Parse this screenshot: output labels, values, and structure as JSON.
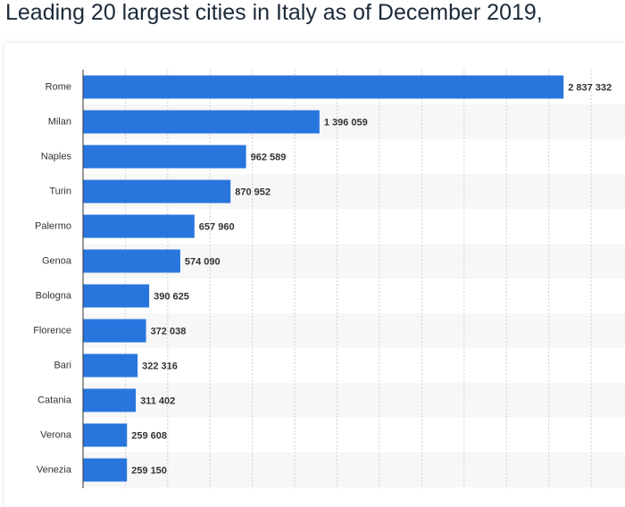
{
  "chart_data": {
    "type": "bar",
    "orientation": "horizontal",
    "title": "Leading 20 largest cities in Italy as of December 2019,",
    "categories": [
      "Rome",
      "Milan",
      "Naples",
      "Turin",
      "Palermo",
      "Genoa",
      "Bologna",
      "Florence",
      "Bari",
      "Catania",
      "Verona",
      "Venezia"
    ],
    "values": [
      2837332,
      1396059,
      962589,
      870952,
      657960,
      574090,
      390625,
      372038,
      322316,
      311402,
      259608,
      259150
    ],
    "value_labels": [
      "2 837 332",
      "1 396 059",
      "962 589",
      "870 952",
      "657 960",
      "574 090",
      "390 625",
      "372 038",
      "322 316",
      "311 402",
      "259 608",
      "259 150"
    ],
    "color": "#2876dd",
    "xlim": [
      0,
      3200000
    ],
    "xticks": [
      0,
      250000,
      500000,
      750000,
      1000000,
      1250000,
      1500000,
      1750000,
      2000000,
      2250000,
      2500000,
      2750000,
      3000000
    ],
    "grid": true
  }
}
